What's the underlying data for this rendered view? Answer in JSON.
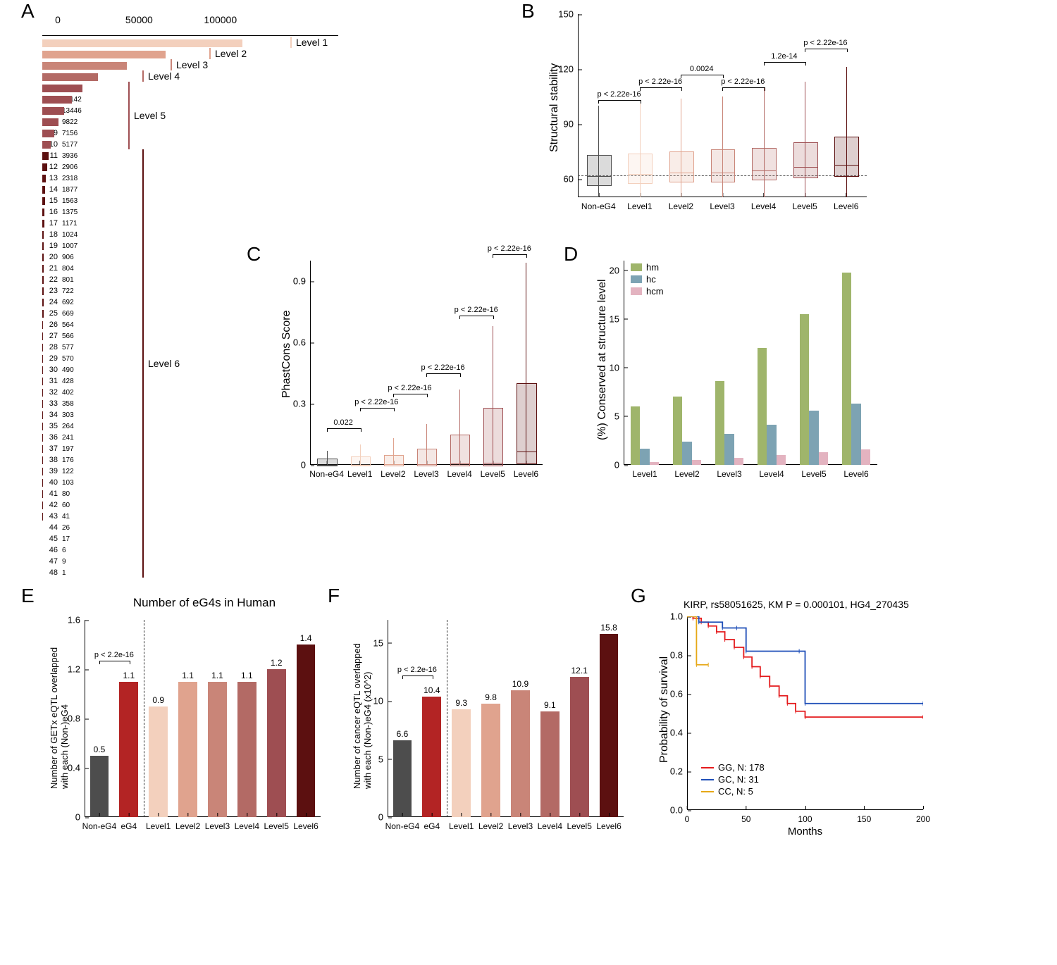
{
  "colors": {
    "non_eg4": "#4d4d4d",
    "eg4": "#b32424",
    "levels": [
      "#f3d0bd",
      "#e0a38e",
      "#c98578",
      "#b36a65",
      "#9e4e52",
      "#5c1010"
    ],
    "hm": "#9fb56b",
    "hc": "#7da3b3",
    "hcm": "#e3b3c0",
    "gg": "#e41a1c",
    "gc": "#1f4fb8",
    "cc": "#e6a817"
  },
  "A": {
    "label": "A",
    "xmax": 130000,
    "xticks": [
      0,
      50000,
      100000
    ],
    "xlabel": "Number of eG4s in Human",
    "rows": [
      {
        "y": 1,
        "v": 123150
      },
      {
        "y": 2,
        "v": 75923
      },
      {
        "y": 3,
        "v": 52137
      },
      {
        "y": 4,
        "v": 34440
      },
      {
        "y": 5,
        "v": 24734
      },
      {
        "y": 6,
        "v": 18142
      },
      {
        "y": 7,
        "v": 13446
      },
      {
        "y": 8,
        "v": 9822
      },
      {
        "y": 9,
        "v": 7156
      },
      {
        "y": 10,
        "v": 5177
      },
      {
        "y": 11,
        "v": 3936
      },
      {
        "y": 12,
        "v": 2906
      },
      {
        "y": 13,
        "v": 2318
      },
      {
        "y": 14,
        "v": 1877
      },
      {
        "y": 15,
        "v": 1563
      },
      {
        "y": 16,
        "v": 1375
      },
      {
        "y": 17,
        "v": 1171
      },
      {
        "y": 18,
        "v": 1024
      },
      {
        "y": 19,
        "v": 1007
      },
      {
        "y": 20,
        "v": 906
      },
      {
        "y": 21,
        "v": 804
      },
      {
        "y": 22,
        "v": 801
      },
      {
        "y": 23,
        "v": 722
      },
      {
        "y": 24,
        "v": 692
      },
      {
        "y": 25,
        "v": 669
      },
      {
        "y": 26,
        "v": 564
      },
      {
        "y": 27,
        "v": 566
      },
      {
        "y": 28,
        "v": 577
      },
      {
        "y": 29,
        "v": 570
      },
      {
        "y": 30,
        "v": 490
      },
      {
        "y": 31,
        "v": 428
      },
      {
        "y": 32,
        "v": 402
      },
      {
        "y": 33,
        "v": 358
      },
      {
        "y": 34,
        "v": 303
      },
      {
        "y": 35,
        "v": 264
      },
      {
        "y": 36,
        "v": 241
      },
      {
        "y": 37,
        "v": 197
      },
      {
        "y": 38,
        "v": 176
      },
      {
        "y": 39,
        "v": 122
      },
      {
        "y": 40,
        "v": 103
      },
      {
        "y": 41,
        "v": 80
      },
      {
        "y": 42,
        "v": 60
      },
      {
        "y": 43,
        "v": 41
      },
      {
        "y": 44,
        "v": 26
      },
      {
        "y": 45,
        "v": 17
      },
      {
        "y": 46,
        "v": 6
      },
      {
        "y": 47,
        "v": 9
      },
      {
        "y": 48,
        "v": 1
      }
    ],
    "brackets": [
      {
        "from": 1,
        "to": 1,
        "label": "Level 1",
        "c": 0
      },
      {
        "from": 2,
        "to": 2,
        "label": "Level  2",
        "c": 1
      },
      {
        "from": 3,
        "to": 3,
        "label": "Level 3",
        "c": 2
      },
      {
        "from": 4,
        "to": 4,
        "label": "Level 4",
        "c": 3
      },
      {
        "from": 5,
        "to": 10,
        "label": "Level 5",
        "c": 4
      },
      {
        "from": 11,
        "to": 48,
        "label": "Level  6",
        "c": 5
      }
    ]
  },
  "B": {
    "label": "B",
    "ylabel": "Structural stability",
    "ylim": [
      50,
      150
    ],
    "yticks": [
      60,
      90,
      120,
      150
    ],
    "cats": [
      "Non-eG4",
      "Level1",
      "Level2",
      "Level3",
      "Level4",
      "Level5",
      "Level6"
    ],
    "hline": 62,
    "boxes": [
      {
        "q1": 57,
        "med": 62,
        "q3": 73,
        "lo": 50,
        "hi": 100,
        "c": "non_eg4"
      },
      {
        "q1": 58,
        "med": 63,
        "q3": 74,
        "lo": 50,
        "hi": 101,
        "c": 0
      },
      {
        "q1": 59,
        "med": 64,
        "q3": 75,
        "lo": 50,
        "hi": 104,
        "c": 1
      },
      {
        "q1": 59,
        "med": 64,
        "q3": 76,
        "lo": 50,
        "hi": 105,
        "c": 2
      },
      {
        "q1": 60,
        "med": 65,
        "q3": 77,
        "lo": 50,
        "hi": 110,
        "c": 3
      },
      {
        "q1": 61,
        "med": 67,
        "q3": 80,
        "lo": 50,
        "hi": 113,
        "c": 4
      },
      {
        "q1": 62,
        "med": 68,
        "q3": 83,
        "lo": 50,
        "hi": 121,
        "c": 5
      }
    ],
    "pvals": [
      {
        "a": 0,
        "b": 1,
        "t": "p < 2.22e-16",
        "y": 103
      },
      {
        "a": 1,
        "b": 2,
        "t": "p < 2.22e-16",
        "y": 110
      },
      {
        "a": 2,
        "b": 3,
        "t": "0.0024",
        "y": 117
      },
      {
        "a": 3,
        "b": 4,
        "t": "p < 2.22e-16",
        "y": 110
      },
      {
        "a": 4,
        "b": 5,
        "t": "1.2e-14",
        "y": 124
      },
      {
        "a": 5,
        "b": 6,
        "t": "p < 2.22e-16",
        "y": 131
      }
    ]
  },
  "C": {
    "label": "C",
    "ylabel": "PhastCons Score",
    "ylim": [
      0,
      1
    ],
    "yticks": [
      0.0,
      0.3,
      0.6,
      0.9
    ],
    "cats": [
      "Non-eG4",
      "Level1",
      "Level2",
      "Level3",
      "Level4",
      "Level5",
      "Level6"
    ],
    "boxes": [
      {
        "q1": 0.0,
        "med": 0.005,
        "q3": 0.03,
        "lo": 0,
        "hi": 0.07,
        "c": "non_eg4"
      },
      {
        "q1": 0.0,
        "med": 0.005,
        "q3": 0.04,
        "lo": 0,
        "hi": 0.1,
        "c": 0
      },
      {
        "q1": 0.0,
        "med": 0.006,
        "q3": 0.05,
        "lo": 0,
        "hi": 0.13,
        "c": 1
      },
      {
        "q1": 0.0,
        "med": 0.007,
        "q3": 0.08,
        "lo": 0,
        "hi": 0.2,
        "c": 2
      },
      {
        "q1": 0.0,
        "med": 0.01,
        "q3": 0.15,
        "lo": 0,
        "hi": 0.37,
        "c": 3
      },
      {
        "q1": 0.0,
        "med": 0.015,
        "q3": 0.28,
        "lo": 0,
        "hi": 0.68,
        "c": 4
      },
      {
        "q1": 0.01,
        "med": 0.07,
        "q3": 0.4,
        "lo": 0,
        "hi": 0.99,
        "c": 5
      }
    ],
    "pvals": [
      {
        "a": 0,
        "b": 1,
        "t": "0.022",
        "y": 0.18
      },
      {
        "a": 1,
        "b": 2,
        "t": "p < 2.22e-16",
        "y": 0.28
      },
      {
        "a": 2,
        "b": 3,
        "t": "p < 2.22e-16",
        "y": 0.35
      },
      {
        "a": 3,
        "b": 4,
        "t": "p < 2.22e-16",
        "y": 0.45
      },
      {
        "a": 4,
        "b": 5,
        "t": "p < 2.22e-16",
        "y": 0.73
      },
      {
        "a": 5,
        "b": 6,
        "t": "p < 2.22e-16",
        "y": 1.03
      }
    ]
  },
  "D": {
    "label": "D",
    "ylabel": "(%) Conserved at structure level",
    "ylim": [
      0,
      21
    ],
    "yticks": [
      0,
      5,
      10,
      15,
      20
    ],
    "cats": [
      "Level1",
      "Level2",
      "Level3",
      "Level4",
      "Level5",
      "Level6"
    ],
    "series": [
      {
        "name": "hm",
        "vals": [
          6.0,
          7.0,
          8.6,
          12.0,
          15.5,
          19.8
        ]
      },
      {
        "name": "hc",
        "vals": [
          1.7,
          2.4,
          3.2,
          4.1,
          5.6,
          6.3
        ]
      },
      {
        "name": "hcm",
        "vals": [
          0.3,
          0.5,
          0.7,
          1.0,
          1.3,
          1.6
        ]
      }
    ]
  },
  "E": {
    "label": "E",
    "ylabel": "Number of GETx eQTL overlapped\nwith each (Non-)eG4",
    "ylim": [
      0,
      1.6
    ],
    "yticks": [
      0.0,
      0.4,
      0.8,
      1.2,
      1.6
    ],
    "left": [
      {
        "cat": "Non-eG4",
        "v": 0.5,
        "c": "non_eg4"
      },
      {
        "cat": "eG4",
        "v": 1.1,
        "c": "eg4"
      }
    ],
    "right": [
      {
        "cat": "Level1",
        "v": 0.9,
        "c": 0
      },
      {
        "cat": "Level2",
        "v": 1.1,
        "c": 1
      },
      {
        "cat": "Level3",
        "v": 1.1,
        "c": 2
      },
      {
        "cat": "Level4",
        "v": 1.1,
        "c": 3
      },
      {
        "cat": "Level5",
        "v": 1.2,
        "c": 4
      },
      {
        "cat": "Level6",
        "v": 1.4,
        "c": 5
      }
    ],
    "pval": "p < 2.2e-16"
  },
  "F": {
    "label": "F",
    "ylabel": "Number of cancer eQTL overlapped\nwith each (Non-)eG4 (x10^2)",
    "ylim": [
      0,
      17
    ],
    "yticks": [
      0,
      5,
      10,
      15
    ],
    "left": [
      {
        "cat": "Non-eG4",
        "v": 6.6,
        "c": "non_eg4"
      },
      {
        "cat": "eG4",
        "v": 10.4,
        "c": "eg4"
      }
    ],
    "right": [
      {
        "cat": "Level1",
        "v": 9.3,
        "c": 0
      },
      {
        "cat": "Level2",
        "v": 9.8,
        "c": 1
      },
      {
        "cat": "Level3",
        "v": 10.9,
        "c": 2
      },
      {
        "cat": "Level4",
        "v": 9.1,
        "c": 3
      },
      {
        "cat": "Level5",
        "v": 12.1,
        "c": 4
      },
      {
        "cat": "Level6",
        "v": 15.8,
        "c": 5
      }
    ],
    "pval": "p < 2.2e-16"
  },
  "G": {
    "label": "G",
    "title": "KIRP, rs58051625, KM P = 0.000101, HG4_270435",
    "xlabel": "Months",
    "ylabel": "Probability of survival",
    "xlim": [
      0,
      200
    ],
    "ylim": [
      0,
      1
    ],
    "xticks": [
      0,
      50,
      100,
      150,
      200
    ],
    "yticks": [
      0.0,
      0.2,
      0.4,
      0.6,
      0.8,
      1.0
    ],
    "series": [
      {
        "name": "GG, N: 178",
        "c": "gg",
        "pts": [
          [
            0,
            1
          ],
          [
            5,
            0.99
          ],
          [
            12,
            0.97
          ],
          [
            18,
            0.95
          ],
          [
            25,
            0.92
          ],
          [
            32,
            0.88
          ],
          [
            40,
            0.84
          ],
          [
            48,
            0.79
          ],
          [
            55,
            0.74
          ],
          [
            62,
            0.69
          ],
          [
            70,
            0.64
          ],
          [
            78,
            0.59
          ],
          [
            85,
            0.55
          ],
          [
            92,
            0.51
          ],
          [
            100,
            0.48
          ],
          [
            200,
            0.48
          ]
        ]
      },
      {
        "name": "GC, N: 31",
        "c": "gc",
        "pts": [
          [
            0,
            1
          ],
          [
            10,
            0.97
          ],
          [
            30,
            0.94
          ],
          [
            42,
            0.94
          ],
          [
            50,
            0.82
          ],
          [
            95,
            0.82
          ],
          [
            100,
            0.55
          ],
          [
            200,
            0.55
          ]
        ]
      },
      {
        "name": "CC, N: 5",
        "c": "cc",
        "pts": [
          [
            0,
            1
          ],
          [
            6,
            1
          ],
          [
            8,
            0.75
          ],
          [
            18,
            0.75
          ]
        ]
      }
    ]
  }
}
